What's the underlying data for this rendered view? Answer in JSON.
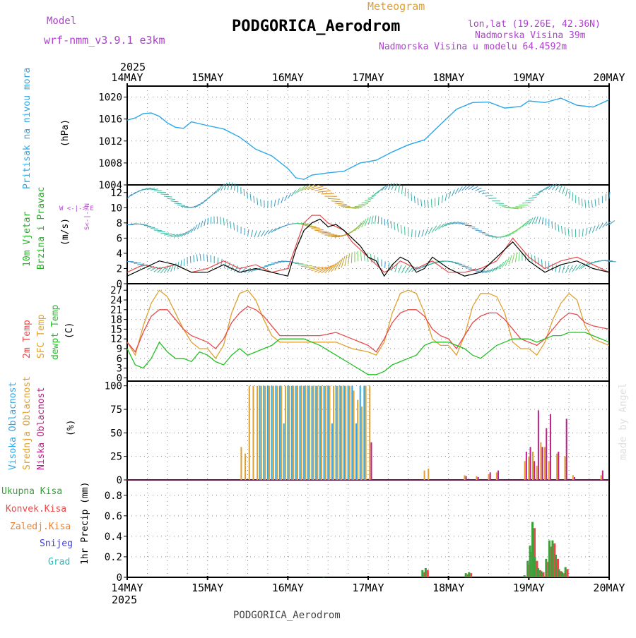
{
  "header": {
    "model_label": "Model",
    "model_name": "wrf-nmm_v3.9.1 e3km",
    "meteogram_label": "Meteogram",
    "station_title": "PODGORICA_Aerodrom",
    "lonlat": "lon,lat (19.26E, 42.36N)",
    "elevation": "Nadmorska Visina 39m",
    "model_elevation": "Nadmorska Visina u modelu 64.4592m",
    "footer_station": "PODGORICA_Aerodrom",
    "credit": "made by Angel"
  },
  "colors": {
    "pressure": "#2aa7e8",
    "wind_label": "#22b022",
    "t2m": "#e84848",
    "sfc": "#e0a030",
    "dew": "#22c022",
    "high_cloud": "#2aa7e8",
    "mid_cloud": "#e0a030",
    "low_cloud": "#c0208a",
    "total_precip": "#3aa03a",
    "conv_precip": "#e84848",
    "frozen_precip": "#f08030",
    "snow": "#3a3ae8",
    "hail": "#22c0c0",
    "purple": "#b040d0",
    "grid": "#888888"
  },
  "time_axis": {
    "year": "2025",
    "ticks": [
      "14MAY",
      "15MAY",
      "16MAY",
      "17MAY",
      "18MAY",
      "19MAY",
      "20MAY"
    ]
  },
  "panel_labels": {
    "pressure": "Pritisak na nivou mora",
    "pressure_unit": "(hPa)",
    "wind_1": "10m Vjetar",
    "wind_2": "Brzina i Pravac",
    "wind_unit": "(m/s)",
    "compass": "W <-|-> E",
    "compass_ns": "S<-|->N",
    "temp_1": "2m Temp",
    "temp_2": "SFC Temp",
    "temp_3": "dewpt Temp",
    "temp_unit": "(C)",
    "cloud_1": "Visoka Oblacnost",
    "cloud_2": "Srednja Oblacnost",
    "cloud_3": "Niska Oblacnost",
    "cloud_unit": "(%)",
    "precip_1": "Ukupna Kisa",
    "precip_2": "Konvek.Kisa",
    "precip_3": "Zaledj.Kisa",
    "precip_4": "Snijeg",
    "precip_5": "Grad",
    "precip_unit": "1hr Precip (mm)"
  },
  "chart_data": [
    {
      "type": "line",
      "title": "Pritisak na nivou mora",
      "ylabel": "(hPa)",
      "ylim": [
        1004,
        1022
      ],
      "yticks": [
        "1004",
        "1008",
        "1012",
        "1016",
        "1020"
      ],
      "x_days": [
        0,
        0.1,
        0.2,
        0.3,
        0.4,
        0.5,
        0.6,
        0.7,
        0.8,
        1.0,
        1.2,
        1.4,
        1.6,
        1.8,
        2.0,
        2.1,
        2.2,
        2.3,
        2.5,
        2.7,
        2.9,
        3.1,
        3.3,
        3.5,
        3.7,
        3.9,
        4.1,
        4.3,
        4.5,
        4.7,
        4.9,
        5.0,
        5.2,
        5.4,
        5.6,
        5.8,
        6.0
      ],
      "series": [
        {
          "name": "SLP",
          "values": [
            1015.8,
            1016.2,
            1017.0,
            1017.1,
            1016.5,
            1015.3,
            1014.5,
            1014.3,
            1015.5,
            1014.8,
            1014.2,
            1012.7,
            1010.5,
            1009.3,
            1007.0,
            1005.3,
            1005.0,
            1005.8,
            1006.2,
            1006.5,
            1008.0,
            1008.5,
            1010.0,
            1011.3,
            1012.2,
            1015.0,
            1017.8,
            1019.0,
            1019.1,
            1018.0,
            1018.3,
            1019.3,
            1019.0,
            1019.8,
            1018.5,
            1018.2,
            1019.5
          ]
        }
      ]
    },
    {
      "type": "line",
      "title": "10m Vjetar Brzina i Pravac",
      "ylabel": "(m/s)",
      "ylim": [
        0,
        13
      ],
      "yticks": [
        "0",
        "2",
        "4",
        "6",
        "8",
        "10",
        "12"
      ],
      "x_days": [
        0,
        0.2,
        0.4,
        0.6,
        0.8,
        1.0,
        1.2,
        1.4,
        1.6,
        1.8,
        2.0,
        2.1,
        2.2,
        2.3,
        2.4,
        2.5,
        2.6,
        2.7,
        2.8,
        2.9,
        3.0,
        3.1,
        3.2,
        3.3,
        3.4,
        3.5,
        3.6,
        3.7,
        3.8,
        4.0,
        4.2,
        4.4,
        4.6,
        4.8,
        5.0,
        5.2,
        5.4,
        5.6,
        5.8,
        6.0
      ],
      "series": [
        {
          "name": "Wind speed (black)",
          "values": [
            1.0,
            2.0,
            3.0,
            2.5,
            1.5,
            1.5,
            2.5,
            1.5,
            2.0,
            1.5,
            1.0,
            4.5,
            7.0,
            8.0,
            8.5,
            7.5,
            7.8,
            7.0,
            6.0,
            5.0,
            3.5,
            3.0,
            1.0,
            2.5,
            3.5,
            3.0,
            1.5,
            2.0,
            3.5,
            2.0,
            1.0,
            1.5,
            3.5,
            5.5,
            3.0,
            1.5,
            2.5,
            3.0,
            2.0,
            1.5
          ]
        },
        {
          "name": "Gust (red)",
          "values": [
            1.5,
            2.5,
            2.0,
            2.5,
            1.5,
            2.0,
            3.0,
            2.0,
            2.5,
            1.5,
            2.0,
            5.0,
            8.0,
            9.0,
            9.0,
            8.0,
            7.5,
            7.0,
            5.5,
            4.5,
            3.5,
            2.5,
            1.5,
            2.0,
            3.0,
            2.5,
            2.0,
            2.5,
            3.0,
            1.5,
            1.5,
            2.0,
            3.0,
            6.0,
            3.5,
            2.0,
            3.0,
            3.5,
            2.5,
            1.5
          ]
        }
      ]
    },
    {
      "type": "line",
      "title": "2m Temp / SFC Temp / dewpt Temp",
      "ylabel": "(C)",
      "ylim": [
        -1,
        29
      ],
      "yticks": [
        "0",
        "3",
        "6",
        "9",
        "12",
        "15",
        "18",
        "21",
        "24",
        "27"
      ],
      "x_days": [
        0,
        0.1,
        0.2,
        0.3,
        0.4,
        0.5,
        0.6,
        0.7,
        0.8,
        0.9,
        1.0,
        1.1,
        1.2,
        1.3,
        1.4,
        1.5,
        1.6,
        1.7,
        1.8,
        1.9,
        2.0,
        2.2,
        2.4,
        2.6,
        2.8,
        3.0,
        3.1,
        3.2,
        3.3,
        3.4,
        3.5,
        3.6,
        3.7,
        3.8,
        3.9,
        4.0,
        4.1,
        4.2,
        4.3,
        4.4,
        4.5,
        4.6,
        4.7,
        4.8,
        4.9,
        5.0,
        5.1,
        5.2,
        5.3,
        5.4,
        5.5,
        5.6,
        5.7,
        5.8,
        5.9,
        6.0
      ],
      "series": [
        {
          "name": "2m Temp",
          "values": [
            11,
            8,
            14,
            19,
            21,
            21,
            18,
            15,
            13,
            12,
            11,
            9,
            12,
            17,
            20,
            22,
            21,
            19,
            16,
            13,
            13,
            13,
            13,
            14,
            12,
            10,
            8,
            12,
            17,
            20,
            21,
            21,
            19,
            15,
            13,
            12,
            9,
            13,
            17,
            19,
            20,
            20,
            18,
            15,
            12,
            11,
            10,
            12,
            15,
            18,
            20,
            19.5,
            17,
            16,
            15.5,
            15
          ]
        },
        {
          "name": "SFC Temp",
          "values": [
            11,
            7,
            16,
            23,
            27,
            25,
            20,
            15,
            11,
            9,
            9,
            6,
            10,
            20,
            26,
            27,
            24,
            18,
            13,
            11,
            11,
            11,
            11,
            11,
            9,
            8,
            7,
            11,
            20,
            26,
            27,
            26,
            20,
            12,
            10,
            10,
            7,
            13,
            22,
            26,
            26,
            25,
            20,
            11,
            9,
            9,
            7,
            11,
            18,
            23,
            26,
            24,
            16,
            12,
            11,
            10
          ]
        },
        {
          "name": "dewpt Temp",
          "values": [
            9,
            4,
            3,
            6,
            11,
            8,
            6,
            6,
            5,
            8,
            7,
            5,
            4,
            7,
            9,
            7,
            8,
            9,
            10,
            12,
            12,
            12,
            10,
            7,
            4,
            1,
            1,
            2,
            4,
            5,
            6,
            7,
            10,
            11,
            11,
            11,
            10,
            9,
            7,
            6,
            8,
            10,
            11,
            12,
            12,
            12,
            11,
            12,
            13,
            13,
            14,
            14,
            14,
            13,
            12,
            11
          ]
        }
      ]
    },
    {
      "type": "bar",
      "title": "Visoka / Srednja / Niska Oblacnost",
      "ylabel": "(%)",
      "ylim": [
        0,
        105
      ],
      "yticks": [
        "0",
        "25",
        "50",
        "75",
        "100"
      ],
      "x_days": [
        1.42,
        1.47,
        1.52,
        1.57,
        1.62,
        1.67,
        1.72,
        1.77,
        1.82,
        1.87,
        1.92,
        1.97,
        2.02,
        2.07,
        2.12,
        2.17,
        2.22,
        2.27,
        2.32,
        2.37,
        2.42,
        2.47,
        2.52,
        2.57,
        2.62,
        2.67,
        2.72,
        2.77,
        2.82,
        2.87,
        2.92,
        2.97,
        3.02,
        3.7,
        3.75,
        4.2,
        4.35,
        4.5,
        4.6,
        4.95,
        5.0,
        5.05,
        5.1,
        5.15,
        5.2,
        5.25,
        5.35,
        5.45,
        5.55,
        5.9
      ],
      "series": [
        {
          "name": "Visoka Oblacnost",
          "values": [
            0,
            0,
            0,
            0,
            0,
            100,
            100,
            100,
            100,
            100,
            100,
            60,
            100,
            100,
            100,
            100,
            100,
            100,
            100,
            100,
            100,
            100,
            100,
            60,
            100,
            100,
            100,
            100,
            100,
            60,
            100,
            100,
            0,
            0,
            0,
            0,
            0,
            0,
            0,
            0,
            0,
            0,
            0,
            0,
            0,
            0,
            0,
            0,
            0,
            0
          ]
        },
        {
          "name": "Srednja Oblacnost",
          "values": [
            35,
            28,
            100,
            100,
            100,
            100,
            100,
            100,
            100,
            100,
            100,
            100,
            100,
            100,
            100,
            100,
            100,
            100,
            100,
            100,
            100,
            100,
            100,
            100,
            100,
            100,
            100,
            100,
            95,
            85,
            78,
            100,
            100,
            10,
            12,
            5,
            4,
            6,
            8,
            20,
            25,
            30,
            15,
            40,
            35,
            20,
            28,
            25,
            5,
            5
          ]
        },
        {
          "name": "Niska Oblacnost",
          "values": [
            0,
            0,
            0,
            0,
            0,
            0,
            0,
            0,
            0,
            0,
            0,
            0,
            0,
            0,
            0,
            0,
            0,
            0,
            0,
            0,
            0,
            0,
            0,
            0,
            0,
            0,
            0,
            0,
            0,
            0,
            0,
            0,
            40,
            0,
            0,
            4,
            3,
            8,
            10,
            30,
            35,
            20,
            74,
            35,
            55,
            70,
            30,
            65,
            3,
            10
          ]
        }
      ]
    },
    {
      "type": "bar",
      "title": "1hr Precip",
      "ylabel": "1hr Precip (mm)",
      "ylim": [
        0,
        0.95
      ],
      "yticks": [
        "0",
        "0.2",
        "0.4",
        "0.6",
        "0.8"
      ],
      "x_days": [
        2.45,
        3.68,
        3.72,
        4.22,
        4.26,
        4.95,
        4.99,
        5.02,
        5.05,
        5.08,
        5.12,
        5.16,
        5.22,
        5.26,
        5.3,
        5.34,
        5.38,
        5.42,
        5.46
      ],
      "series": [
        {
          "name": "Ukupna Kisa",
          "values": [
            0.01,
            0.07,
            0.09,
            0.04,
            0.05,
            0.02,
            0.16,
            0.31,
            0.54,
            0.2,
            0.09,
            0.06,
            0.18,
            0.36,
            0.36,
            0.22,
            0.08,
            0.05,
            0.1
          ]
        },
        {
          "name": "Konvek.Kisa",
          "values": [
            0.0,
            0.05,
            0.07,
            0.03,
            0.04,
            0.01,
            0.12,
            0.25,
            0.48,
            0.16,
            0.07,
            0.05,
            0.15,
            0.3,
            0.33,
            0.18,
            0.06,
            0.04,
            0.08
          ]
        }
      ]
    }
  ]
}
